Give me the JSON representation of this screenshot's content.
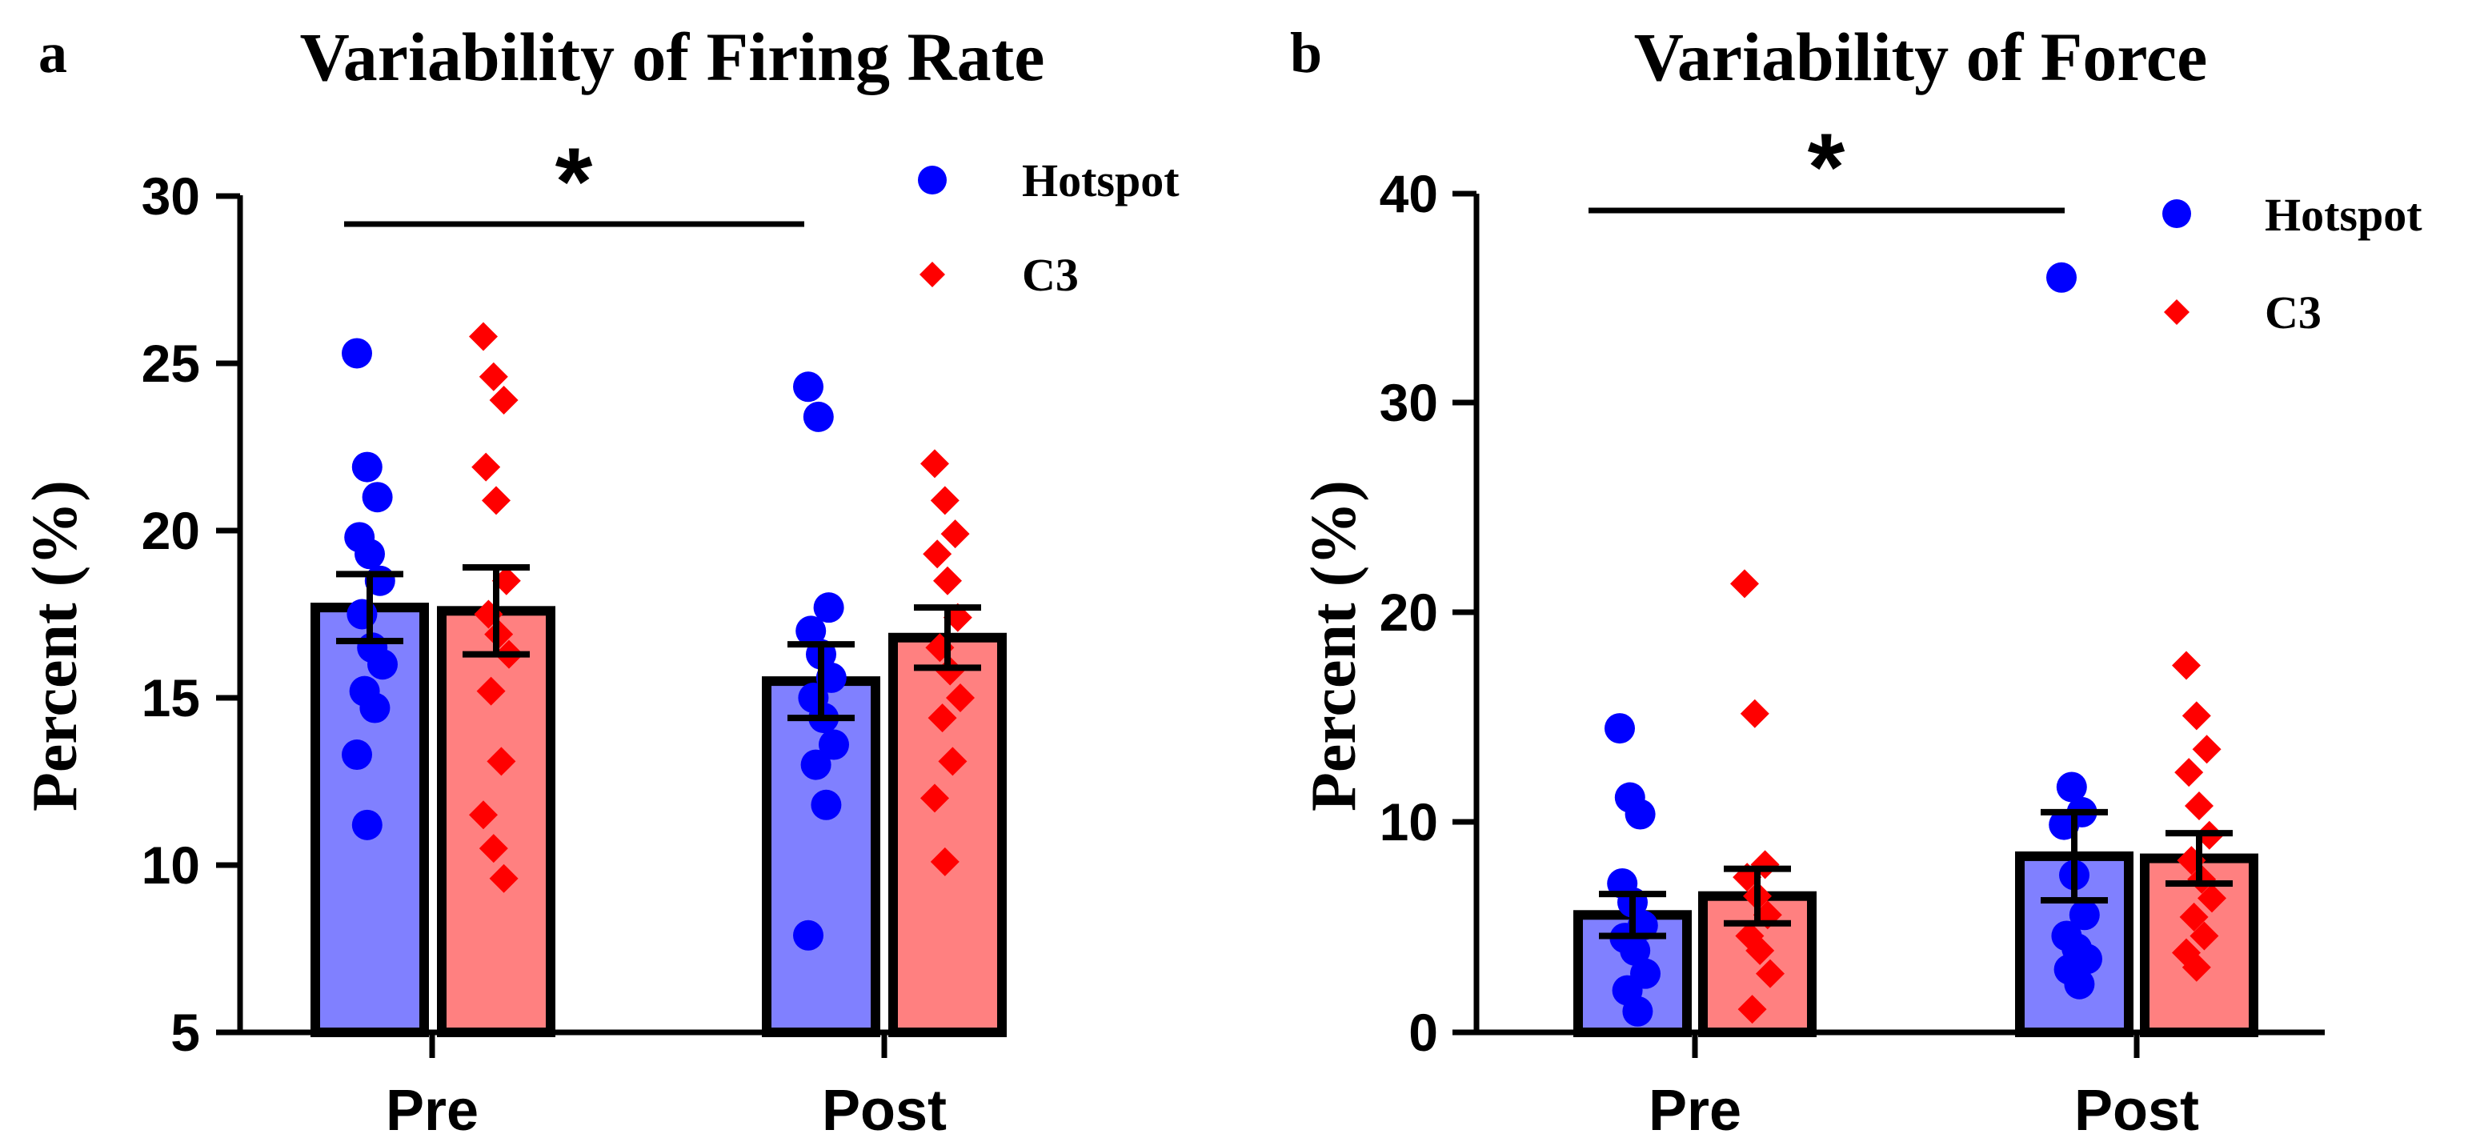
{
  "chart_data": [
    {
      "panel_label": "a",
      "type": "bar",
      "title": "Variability of Firing Rate",
      "ylabel": "Percent (%)",
      "xlabel": "",
      "ylim": [
        5,
        30
      ],
      "yticks": [
        5,
        10,
        15,
        20,
        25,
        30
      ],
      "categories": [
        "Pre",
        "Post"
      ],
      "legend_position": "top-right",
      "series": [
        {
          "name": "Hotspot",
          "color": "#8080ff",
          "marker_color": "#0000ff",
          "marker": "circle",
          "means": [
            17.7,
            15.5
          ],
          "errors": [
            1.0,
            1.1
          ],
          "points": [
            [
              25.3,
              21.9,
              21.0,
              19.8,
              19.3,
              18.5,
              17.5,
              16.5,
              16.0,
              15.2,
              14.7,
              13.3,
              11.2
            ],
            [
              24.3,
              23.4,
              17.7,
              17.0,
              16.3,
              15.6,
              15.0,
              14.4,
              13.6,
              13.0,
              11.8,
              7.9
            ]
          ]
        },
        {
          "name": "C3",
          "color": "#ff8080",
          "marker_color": "#ff0000",
          "marker": "diamond",
          "means": [
            17.6,
            16.8
          ],
          "errors": [
            1.3,
            0.9
          ],
          "points": [
            [
              25.8,
              24.6,
              23.9,
              21.9,
              20.9,
              18.5,
              17.5,
              16.9,
              16.3,
              15.2,
              13.1,
              11.5,
              10.5,
              9.6
            ],
            [
              22.0,
              20.9,
              19.9,
              19.3,
              18.5,
              17.4,
              16.5,
              15.8,
              15.0,
              14.4,
              13.1,
              12.0,
              10.1
            ]
          ]
        }
      ],
      "significance": {
        "label": "*",
        "between": [
          "Pre",
          "Post"
        ]
      }
    },
    {
      "panel_label": "b",
      "type": "bar",
      "title": "Variability of Force",
      "ylabel": "Percent (%)",
      "xlabel": "",
      "ylim": [
        0,
        40
      ],
      "yticks": [
        0,
        10,
        20,
        30,
        40
      ],
      "categories": [
        "Pre",
        "Post"
      ],
      "legend_position": "top-right",
      "series": [
        {
          "name": "Hotspot",
          "color": "#8080ff",
          "marker_color": "#0000ff",
          "marker": "circle",
          "means": [
            5.6,
            8.4
          ],
          "errors": [
            1.0,
            2.1
          ],
          "points": [
            [
              14.5,
              11.2,
              10.4,
              7.1,
              6.2,
              5.1,
              4.5,
              3.9,
              2.8,
              2.0,
              1.0
            ],
            [
              36.0,
              11.7,
              10.5,
              9.9,
              7.5,
              5.6,
              4.6,
              4.0,
              3.5,
              3.0,
              2.3
            ]
          ]
        },
        {
          "name": "C3",
          "color": "#ff8080",
          "marker_color": "#ff0000",
          "marker": "diamond",
          "means": [
            6.5,
            8.3
          ],
          "errors": [
            1.3,
            1.2
          ],
          "points": [
            [
              21.4,
              15.2,
              8.0,
              7.4,
              6.5,
              5.6,
              4.6,
              3.9,
              2.8,
              1.1
            ],
            [
              17.5,
              15.1,
              13.5,
              12.4,
              10.8,
              9.4,
              8.2,
              7.3,
              6.4,
              5.5,
              4.6,
              3.8,
              3.1
            ]
          ]
        }
      ],
      "significance": {
        "label": "*",
        "between": [
          "Pre",
          "Post"
        ]
      }
    }
  ]
}
